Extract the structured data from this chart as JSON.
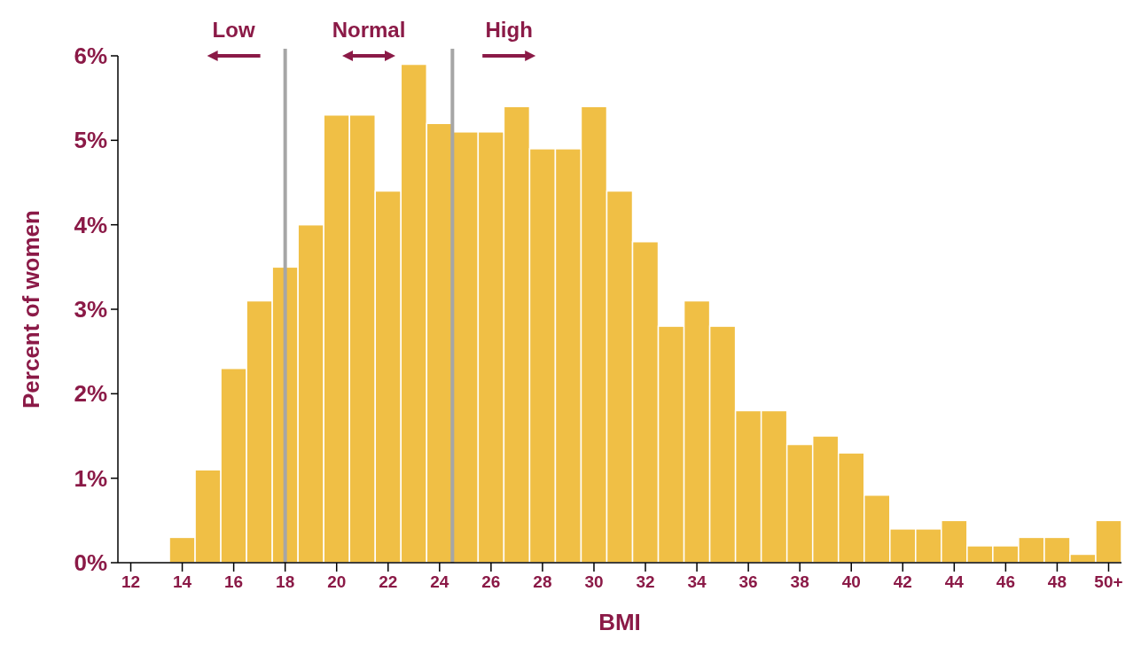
{
  "chart_data": {
    "type": "bar",
    "xlabel": "BMI",
    "ylabel": "Percent of women",
    "color": "#f0bf45",
    "x": [
      12,
      13,
      14,
      15,
      16,
      17,
      18,
      19,
      20,
      21,
      22,
      23,
      24,
      25,
      26,
      27,
      28,
      29,
      30,
      31,
      32,
      33,
      34,
      35,
      36,
      37,
      38,
      39,
      40,
      41,
      42,
      43,
      44,
      45,
      46,
      47,
      48,
      49,
      50
    ],
    "values": [
      0,
      0,
      0.3,
      1.1,
      2.3,
      3.1,
      3.5,
      4.0,
      5.3,
      5.3,
      4.4,
      5.9,
      5.2,
      5.1,
      5.1,
      5.4,
      4.9,
      4.9,
      5.4,
      4.4,
      3.8,
      2.8,
      3.1,
      2.8,
      1.8,
      1.8,
      1.4,
      1.5,
      1.3,
      0.8,
      0.4,
      0.4,
      0.5,
      0.2,
      0.2,
      0.3,
      0.3,
      0.1,
      0.5
    ],
    "xlim": [
      11.5,
      50.5
    ],
    "xticks": [
      12,
      14,
      16,
      18,
      20,
      22,
      24,
      26,
      28,
      30,
      32,
      34,
      36,
      38,
      40,
      42,
      44,
      46,
      48,
      {
        "value": 50,
        "label": "50+"
      }
    ],
    "ylim": [
      0,
      6
    ],
    "yticks": [
      {
        "value": 0,
        "label": "0%"
      },
      {
        "value": 1,
        "label": "1%"
      },
      {
        "value": 2,
        "label": "2%"
      },
      {
        "value": 3,
        "label": "3%"
      },
      {
        "value": 4,
        "label": "4%"
      },
      {
        "value": 5,
        "label": "5%"
      },
      {
        "value": 6,
        "label": "6%"
      }
    ],
    "ref_lines": [
      {
        "axis": "x",
        "value": 18,
        "color": "#a6a6a6"
      },
      {
        "axis": "x",
        "value": 24.5,
        "color": "#a6a6a6"
      }
    ],
    "annotations": [
      "Low",
      "Normal",
      "High"
    ],
    "grid": false
  }
}
